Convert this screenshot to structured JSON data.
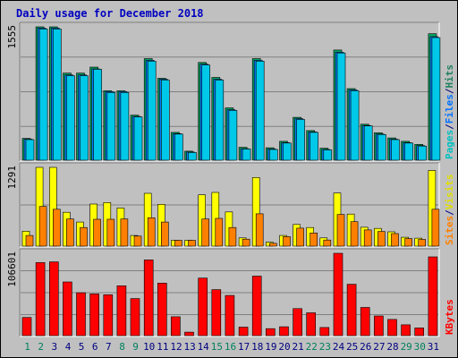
{
  "chart_data": {
    "type": "bar",
    "title": "Daily usage for December 2018",
    "days": [
      1,
      2,
      3,
      4,
      5,
      6,
      7,
      8,
      9,
      10,
      11,
      12,
      13,
      14,
      15,
      16,
      17,
      18,
      19,
      20,
      21,
      22,
      23,
      24,
      25,
      26,
      27,
      28,
      29,
      30,
      31
    ],
    "weekend_days": [
      1,
      2,
      8,
      9,
      15,
      16,
      22,
      23,
      29,
      30
    ],
    "panels": [
      {
        "id": "hits-panel",
        "max_label": "1555",
        "ymax": 1555,
        "legend": [
          {
            "text": "Pages",
            "color": "#00c0c0"
          },
          {
            "text": "/",
            "color": "#000080"
          },
          {
            "text": "Files",
            "color": "#0070ff"
          },
          {
            "text": "/",
            "color": "#000080"
          },
          {
            "text": "Hits",
            "color": "#208060"
          }
        ],
        "series": [
          {
            "name": "Hits",
            "color": "#00a060",
            "values": [
              255,
              1555,
              1555,
              1015,
              1015,
              1085,
              810,
              810,
              525,
              1185,
              955,
              325,
              105,
              1140,
              965,
              610,
              150,
              1185,
              145,
              220,
              500,
              345,
              140,
              1285,
              835,
              420,
              320,
              260,
              220,
              185,
              1475
            ]
          },
          {
            "name": "Files",
            "color": "#0080ff",
            "values": [
              245,
              1540,
              1540,
              995,
              995,
              1065,
              800,
              800,
              510,
              1165,
              945,
              310,
              95,
              1120,
              945,
              590,
              135,
              1165,
              130,
              205,
              485,
              330,
              125,
              1260,
              820,
              405,
              305,
              245,
              205,
              170,
              1440
            ]
          },
          {
            "name": "Pages",
            "color": "#00c8e8",
            "values": [
              240,
              1530,
              1530,
              985,
              985,
              1060,
              790,
              790,
              505,
              1155,
              935,
              305,
              90,
              1110,
              935,
              580,
              130,
              1155,
              125,
              200,
              475,
              325,
              120,
              1250,
              810,
              400,
              300,
              240,
              200,
              165,
              1430
            ]
          }
        ]
      },
      {
        "id": "visits-panel",
        "max_label": "1291",
        "ymax": 1291,
        "legend": [
          {
            "text": "Sites",
            "color": "#ff8000"
          },
          {
            "text": "/",
            "color": "#000080"
          },
          {
            "text": "Visits",
            "color": "#e0e000"
          }
        ],
        "series": [
          {
            "name": "Visits",
            "color": "#ffff00",
            "values": [
              245,
              1291,
              1291,
              555,
              395,
              690,
              715,
              625,
              175,
              865,
              685,
              95,
              95,
              840,
              880,
              560,
              135,
              1125,
              65,
              175,
              355,
              305,
              135,
              870,
              525,
              310,
              290,
              235,
              145,
              130,
              1240
            ]
          },
          {
            "name": "Sites",
            "color": "#ff8000",
            "values": [
              175,
              650,
              605,
              445,
              305,
              440,
              440,
              445,
              165,
              465,
              395,
              95,
              95,
              445,
              455,
              305,
              115,
              530,
              45,
              155,
              295,
              215,
              100,
              520,
              400,
              265,
              240,
              205,
              125,
              110,
              605
            ]
          }
        ]
      },
      {
        "id": "kbytes-panel",
        "max_label": "106601",
        "ymax": 106601,
        "legend": [
          {
            "text": "KBytes",
            "color": "#ff0000"
          }
        ],
        "series": [
          {
            "name": "KBytes",
            "color": "#ff0000",
            "values": [
              23500,
              94500,
              95500,
              69500,
              55500,
              54000,
              53000,
              64500,
              48000,
              98000,
              68000,
              24500,
              4500,
              74500,
              59500,
              52000,
              11000,
              77000,
              9000,
              11500,
              35000,
              29500,
              10500,
              106601,
              66500,
              36500,
              25500,
              21000,
              14000,
              10000,
              102000
            ]
          }
        ]
      }
    ]
  }
}
